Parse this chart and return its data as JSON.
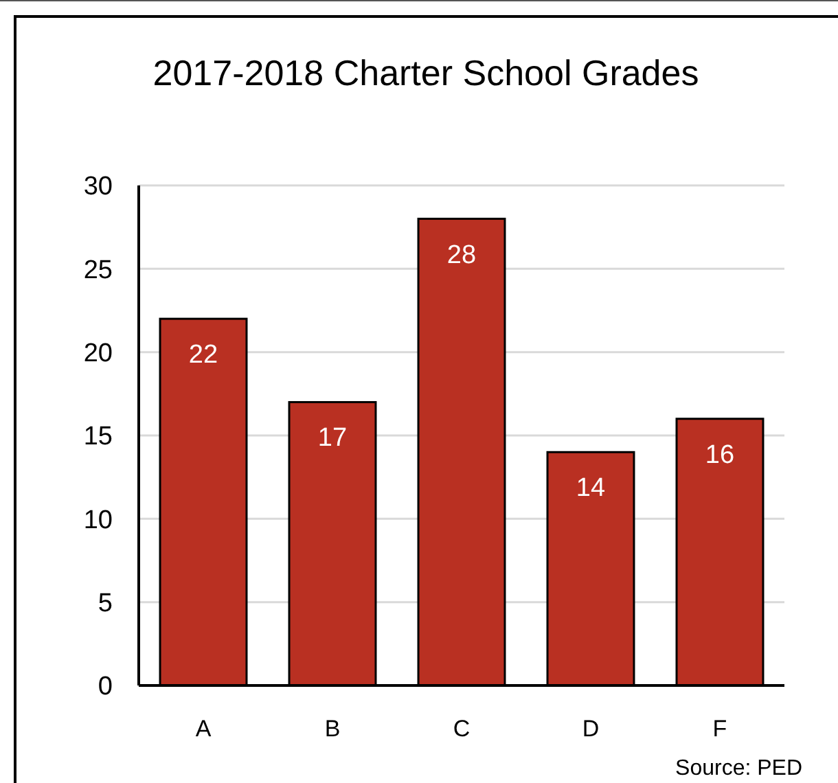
{
  "chart_data": {
    "type": "bar",
    "title": "2017-2018 Charter School Grades",
    "categories": [
      "A",
      "B",
      "C",
      "D",
      "F"
    ],
    "values": [
      22,
      17,
      28,
      14,
      16
    ],
    "color": "#b93022",
    "ylim": [
      0,
      30
    ],
    "yticks": [
      0,
      5,
      10,
      15,
      20,
      25,
      30
    ],
    "grid": "y",
    "data_labels": true,
    "annotations": [
      "Source: PED"
    ]
  }
}
